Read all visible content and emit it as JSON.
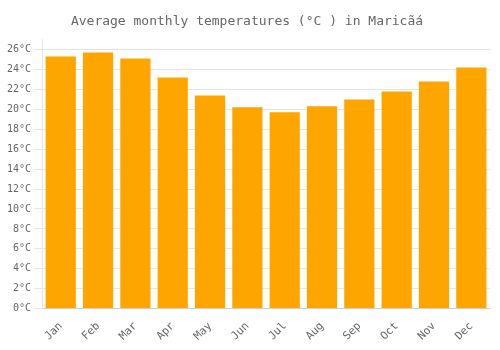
{
  "chart_data": {
    "type": "bar",
    "title": "Average monthly temperatures (°C ) in Maricãá",
    "categories": [
      "Jan",
      "Feb",
      "Mar",
      "Apr",
      "May",
      "Jun",
      "Jul",
      "Aug",
      "Sep",
      "Oct",
      "Nov",
      "Dec"
    ],
    "values": [
      25.3,
      25.7,
      25.1,
      23.2,
      21.4,
      20.2,
      19.7,
      20.3,
      21.0,
      21.8,
      22.8,
      24.2
    ],
    "color": "#FFA500",
    "ylim": [
      0,
      27
    ],
    "yticks": [
      {
        "value": 0,
        "label": "0°C"
      },
      {
        "value": 2,
        "label": "2°C"
      },
      {
        "value": 4,
        "label": "4°C"
      },
      {
        "value": 6,
        "label": "6°C"
      },
      {
        "value": 8,
        "label": "8°C"
      },
      {
        "value": 10,
        "label": "10°C"
      },
      {
        "value": 12,
        "label": "12°C"
      },
      {
        "value": 14,
        "label": "14°C"
      },
      {
        "value": 16,
        "label": "16°C"
      },
      {
        "value": 18,
        "label": "18°C"
      },
      {
        "value": 20,
        "label": "20°C"
      },
      {
        "value": 22,
        "label": "22°C"
      },
      {
        "value": 24,
        "label": "24°C"
      },
      {
        "value": 26,
        "label": "26°C"
      }
    ],
    "grid": true
  }
}
